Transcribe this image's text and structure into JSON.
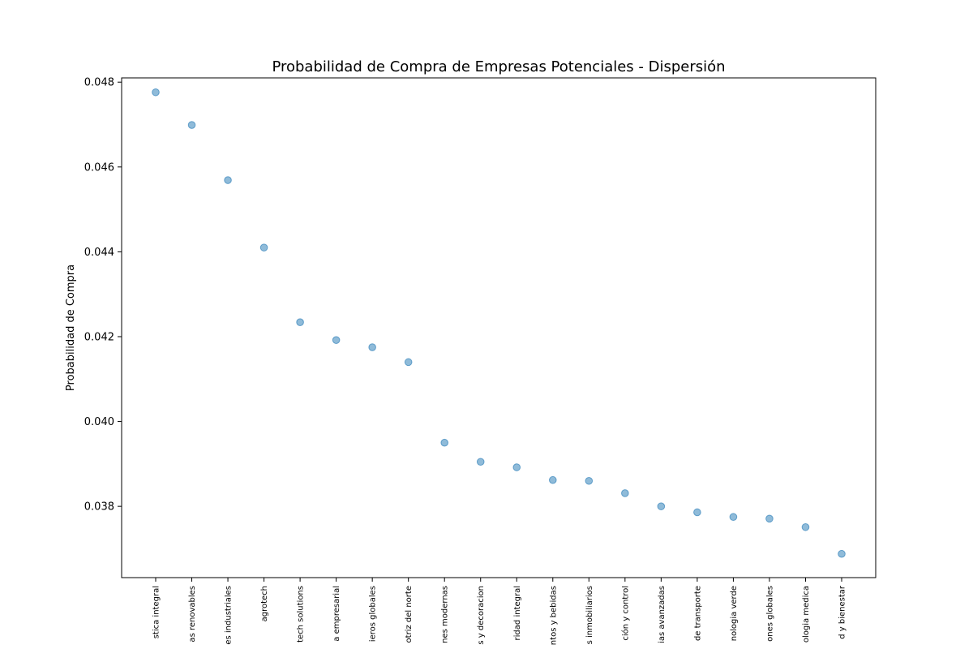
{
  "chart_data": {
    "type": "scatter",
    "title": "Probabilidad de Compra de Empresas Potenciales - Dispersión",
    "xlabel": "",
    "ylabel": "Probabilidad de Compra",
    "categories": [
      "stica integral",
      "as renovables",
      "es industriales",
      "agrotech",
      "tech solutions",
      "a empresarial",
      "ieros globales",
      "otriz del norte",
      "nes modernas",
      "s y decoracion",
      "ridad integral",
      "ntos y bebidas",
      "s inmobiliarios",
      "ción y control",
      "ias avanzadas",
      "de transporte",
      "nologia verde",
      "ones globales",
      "ologia medica",
      "d y bienestar"
    ],
    "values": [
      0.04776,
      0.04699,
      0.04569,
      0.0441,
      0.04234,
      0.04192,
      0.04175,
      0.0414,
      0.0395,
      0.03905,
      0.03892,
      0.03862,
      0.0386,
      0.03831,
      0.038,
      0.03786,
      0.03775,
      0.03771,
      0.03751,
      0.03688
    ],
    "ylim": [
      0.03632,
      0.0481
    ],
    "yticks": [
      0.038,
      0.04,
      0.042,
      0.044,
      0.046,
      0.048
    ],
    "ytick_labels": [
      "0.038",
      "0.040",
      "0.042",
      "0.044",
      "0.046",
      "0.048"
    ],
    "grid": false,
    "legend": "none",
    "marker_color": "#1f77b4"
  }
}
